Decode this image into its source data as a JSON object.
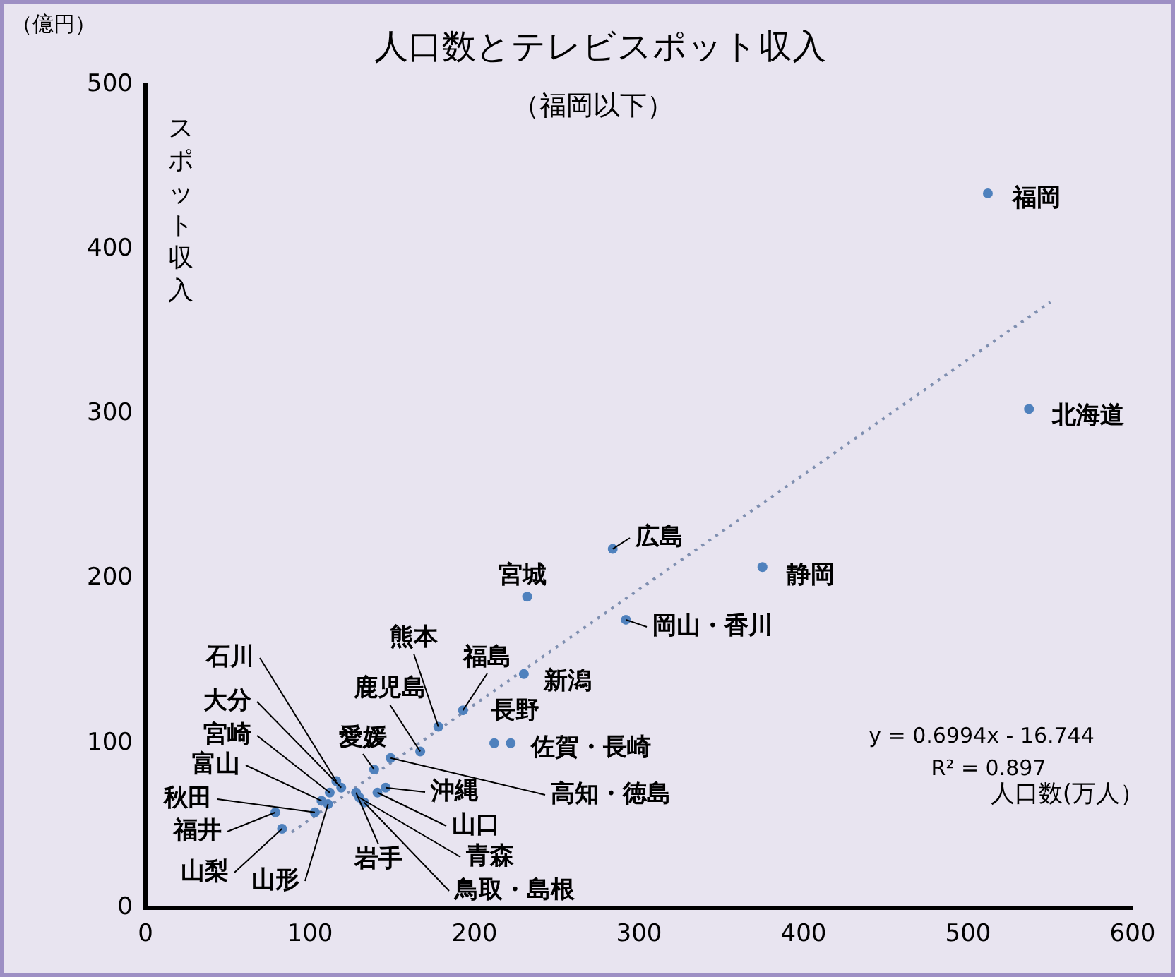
{
  "chart_data": {
    "type": "scatter",
    "title": "人口数とテレビスポット収入",
    "subtitle": "（福岡以下）",
    "xlabel": "人口数(万人）",
    "ylabel": "スポット収入",
    "xlim": [
      0,
      600
    ],
    "ylim": [
      0,
      500
    ],
    "xticks": [
      0,
      100,
      200,
      300,
      400,
      500,
      600
    ],
    "yticks": [
      0,
      100,
      200,
      300,
      400,
      500
    ],
    "grid": false,
    "legend": false,
    "marker": "circle",
    "series": [
      {
        "color": "#4f81bd",
        "x": [
          512,
          537,
          284,
          375,
          232,
          292,
          230,
          193,
          178,
          167,
          212,
          222,
          139,
          149,
          146,
          141,
          128,
          130,
          133,
          116,
          119,
          112,
          107,
          103,
          79,
          83,
          111
        ],
        "values": [
          434,
          303,
          218,
          207,
          189,
          175,
          142,
          120,
          110,
          95,
          100,
          100,
          84,
          91,
          73,
          70,
          70,
          67,
          64,
          77,
          73,
          70,
          65,
          58,
          58,
          48,
          63
        ]
      },
      {
        "type": "line",
        "color": "#7f8fb0",
        "line_style": "dotted",
        "marker": "none",
        "x": [
          89,
          550
        ],
        "values": [
          46,
          368
        ]
      }
    ],
    "annotations": [
      "（億円）",
      "y = 0.6994x - 16.744",
      "R² = 0.897",
      {
        "text": "福岡",
        "x": 512,
        "y": 434
      },
      {
        "text": "北海道",
        "x": 537,
        "y": 303
      },
      {
        "text": "広島",
        "x": 284,
        "y": 218
      },
      {
        "text": "静岡",
        "x": 375,
        "y": 207
      },
      {
        "text": "宮城",
        "x": 232,
        "y": 189
      },
      {
        "text": "岡山・香川",
        "x": 292,
        "y": 175
      },
      {
        "text": "新潟",
        "x": 230,
        "y": 142
      },
      {
        "text": "福島",
        "x": 193,
        "y": 120
      },
      {
        "text": "熊本",
        "x": 178,
        "y": 110
      },
      {
        "text": "鹿児島",
        "x": 167,
        "y": 95
      },
      {
        "text": "長野",
        "x": 212,
        "y": 100
      },
      {
        "text": "佐賀・長崎",
        "x": 222,
        "y": 100
      },
      {
        "text": "愛媛",
        "x": 139,
        "y": 84
      },
      {
        "text": "高知・徳島",
        "x": 149,
        "y": 91
      },
      {
        "text": "沖縄",
        "x": 146,
        "y": 73
      },
      {
        "text": "山口",
        "x": 141,
        "y": 70
      },
      {
        "text": "岩手",
        "x": 128,
        "y": 70
      },
      {
        "text": "青森",
        "x": 130,
        "y": 67
      },
      {
        "text": "鳥取・島根",
        "x": 133,
        "y": 64
      },
      {
        "text": "石川",
        "x": 116,
        "y": 77
      },
      {
        "text": "大分",
        "x": 119,
        "y": 73
      },
      {
        "text": "宮崎",
        "x": 112,
        "y": 70
      },
      {
        "text": "富山",
        "x": 107,
        "y": 65
      },
      {
        "text": "秋田",
        "x": 103,
        "y": 58
      },
      {
        "text": "福井",
        "x": 79,
        "y": 58
      },
      {
        "text": "山梨",
        "x": 83,
        "y": 48
      },
      {
        "text": "山形",
        "x": 111,
        "y": 63
      }
    ]
  }
}
